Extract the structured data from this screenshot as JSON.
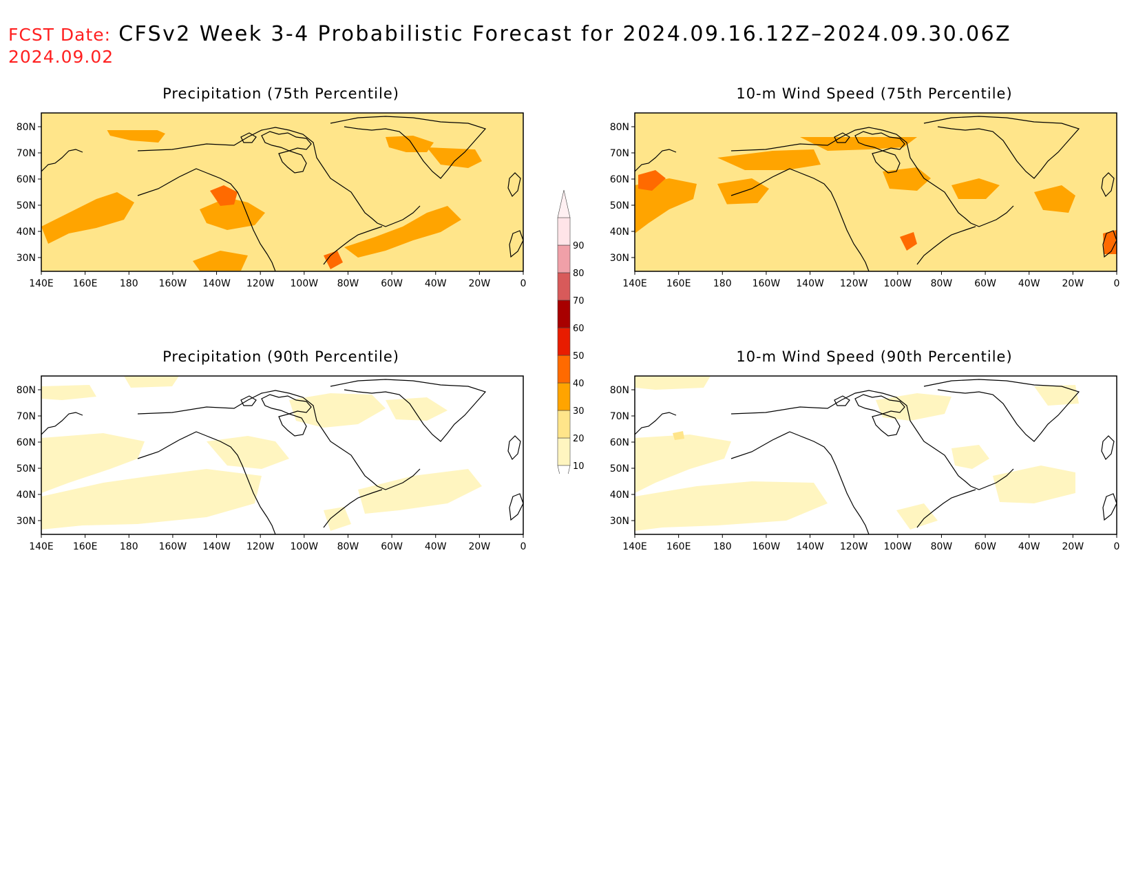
{
  "header": {
    "fcst_label": "FCST Date:",
    "title": "CFSv2 Week 3-4 Probabilistic Forecast for 2024.09.16.12Z–2024.09.30.06Z",
    "fcst_date": "2024.09.02"
  },
  "panels": [
    {
      "title": "Precipitation (75th Percentile)"
    },
    {
      "title": "10-m Wind Speed (75th Percentile)"
    },
    {
      "title": "Precipitation (90th Percentile)"
    },
    {
      "title": "10-m Wind Speed (90th Percentile)"
    }
  ],
  "axes": {
    "lon_labels": [
      "140E",
      "160E",
      "180",
      "160W",
      "140W",
      "120W",
      "100W",
      "80W",
      "60W",
      "40W",
      "20W",
      "0"
    ],
    "lat_labels": [
      "80N",
      "70N",
      "60N",
      "50N",
      "40N",
      "30N"
    ]
  },
  "colorbar": {
    "levels": [
      "10",
      "20",
      "30",
      "40",
      "50",
      "60",
      "70",
      "80",
      "90"
    ],
    "colors": [
      "#fff5c0",
      "#ffe58a",
      "#ffa400",
      "#ff6a00",
      "#e81c00",
      "#a80000",
      "#d85a5a",
      "#f0a0a8",
      "#ffe4e8"
    ]
  }
}
